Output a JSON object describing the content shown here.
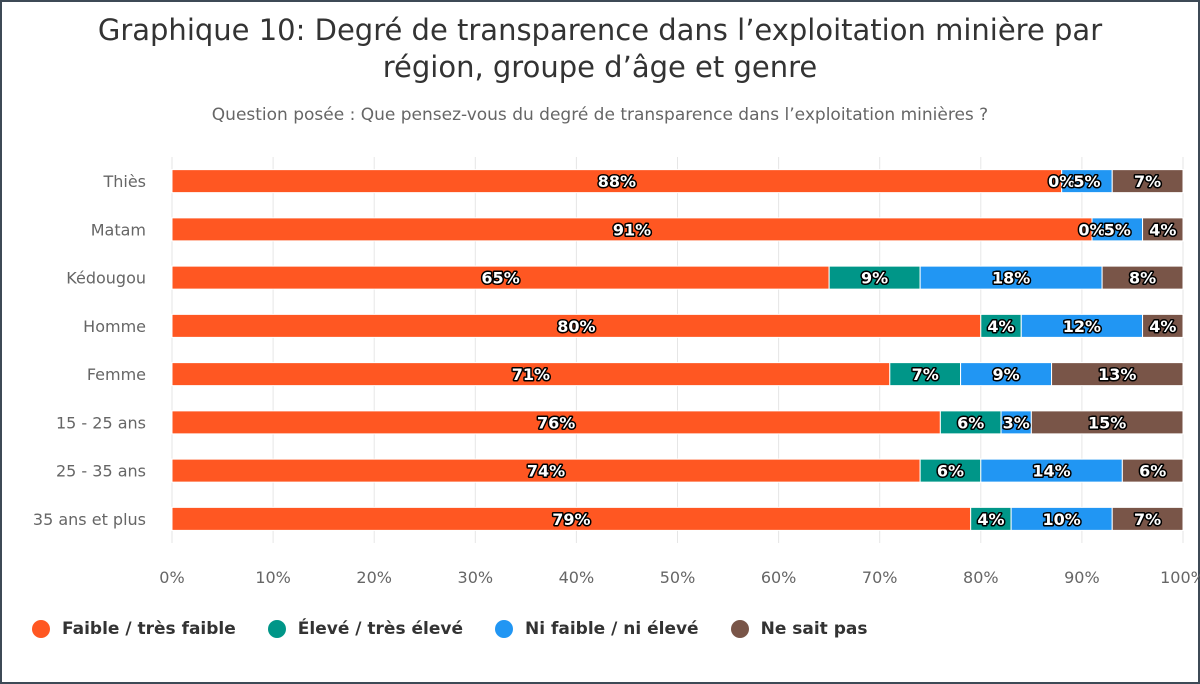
{
  "title_line1": "Graphique 10: Degré de transparence dans l’exploitation minière par",
  "title_line2": "région, groupe d’âge et genre",
  "subtitle": "Question posée : Que pensez-vous du degré de transparence dans l’exploitation minières ?",
  "chart_data": {
    "type": "bar",
    "orientation": "horizontal",
    "stacking": "percent",
    "categories": [
      "Thiès",
      "Matam",
      "Kédougou",
      "Homme",
      "Femme",
      "15 - 25 ans",
      "25 - 35 ans",
      "35 ans et plus"
    ],
    "series": [
      {
        "name": "Faible / très faible",
        "color": "#ff5722",
        "values": [
          88,
          91,
          65,
          80,
          71,
          76,
          74,
          79
        ],
        "labels": [
          "88%",
          "91%",
          "65%",
          "80%",
          "71%",
          "76%",
          "74%",
          "79%"
        ]
      },
      {
        "name": "Élevé / très élevé",
        "color": "#009688",
        "values": [
          0,
          0,
          9,
          4,
          7,
          6,
          6,
          4
        ],
        "labels": [
          "0%",
          "0%",
          "9%",
          "4%",
          "7%",
          "6%",
          "6%",
          "4%"
        ]
      },
      {
        "name": "Ni faible / ni élevé",
        "color": "#2196f3",
        "values": [
          5,
          5,
          18,
          12,
          9,
          3,
          14,
          10
        ],
        "labels": [
          "5%",
          "5%",
          "18%",
          "12%",
          "9%",
          "3%",
          "14%",
          "10%"
        ]
      },
      {
        "name": "Ne sait pas",
        "color": "#795548",
        "values": [
          7,
          4,
          8,
          4,
          13,
          15,
          6,
          7
        ],
        "labels": [
          "7%",
          "4%",
          "8%",
          "4%",
          "13%",
          "15%",
          "6%",
          "7%"
        ]
      }
    ],
    "xlim": [
      0,
      100
    ],
    "x_ticks": [
      "0%",
      "10%",
      "20%",
      "30%",
      "40%",
      "50%",
      "60%",
      "70%",
      "80%",
      "90%",
      "100%"
    ],
    "grid": true,
    "legend_position": "bottom-left"
  }
}
